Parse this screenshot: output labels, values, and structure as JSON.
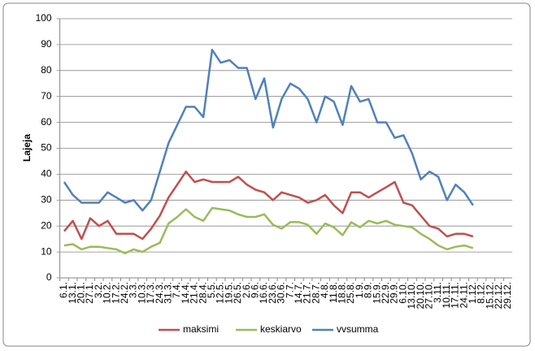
{
  "chart_data": {
    "type": "line",
    "ylabel": "Lajeja",
    "categories": [
      "6.1.",
      "13.1.",
      "20.1.",
      "27.1.",
      "3.2.",
      "10.2.",
      "17.2.",
      "24.2.",
      "3.3.",
      "10.3.",
      "17.3.",
      "24.3.",
      "31.3.",
      "7.4.",
      "14.4.",
      "21.4.",
      "28.4.",
      "5.5.",
      "12.5.",
      "19.5.",
      "26.5.",
      "2.6.",
      "9.6.",
      "16.6.",
      "23.6.",
      "30.6.",
      "7.7.",
      "14.7.",
      "21.7.",
      "28.7.",
      "4.8.",
      "11.8.",
      "18.8.",
      "25.8.",
      "1.9.",
      "8.9.",
      "15.9.",
      "22.9.",
      "29.9.",
      "6.10.",
      "13.10.",
      "20.10.",
      "27.10.",
      "3.11.",
      "10.11.",
      "17.11.",
      "24.11.",
      "1.12.",
      "8.12.",
      "15.12.",
      "22.12.",
      "29.12."
    ],
    "series": [
      {
        "name": "maksimi",
        "color": "#c0504d",
        "values": [
          18,
          22,
          15,
          23,
          20,
          22,
          17,
          17,
          17,
          15,
          19,
          24,
          31,
          36,
          41,
          37,
          38,
          37,
          37,
          37,
          39,
          36,
          34,
          33,
          30,
          33,
          32,
          31,
          29,
          30,
          32,
          28,
          25,
          33,
          33,
          31,
          33,
          35,
          37,
          29,
          28,
          24,
          20,
          19,
          16,
          17,
          17,
          16,
          null,
          null,
          null,
          null
        ]
      },
      {
        "name": "keskiarvo",
        "color": "#9bbb59",
        "values": [
          12.5,
          13,
          11,
          12,
          12,
          11.5,
          11,
          9.5,
          11,
          10,
          12,
          13.5,
          21,
          23.5,
          26.5,
          23.5,
          22,
          27,
          26.5,
          26,
          24.5,
          23.5,
          23.5,
          24.5,
          20.5,
          19,
          21.5,
          21.5,
          20.5,
          17,
          21,
          19.5,
          16.5,
          21.5,
          19.5,
          22,
          21,
          22,
          20.5,
          20,
          19.5,
          17,
          15,
          12.5,
          11,
          12,
          12.5,
          11.5,
          null,
          null,
          null,
          null
        ]
      },
      {
        "name": "vvsumma",
        "color": "#4f81bd",
        "values": [
          37,
          32,
          29,
          29,
          29,
          33,
          31,
          29,
          30,
          26,
          30,
          41,
          52,
          59,
          66,
          66,
          62,
          88,
          83,
          84,
          81,
          81,
          69,
          77,
          58,
          69,
          75,
          73,
          69,
          60,
          70,
          68,
          59,
          74,
          68,
          69,
          60,
          60,
          54,
          55,
          48,
          38,
          41,
          39,
          30,
          36,
          33,
          28,
          null,
          null,
          null,
          null
        ]
      }
    ],
    "ylim": [
      0,
      100
    ],
    "yticks": [
      0,
      10,
      20,
      30,
      40,
      50,
      60,
      70,
      80,
      90,
      100
    ],
    "grid": true,
    "legend": "bottom"
  }
}
